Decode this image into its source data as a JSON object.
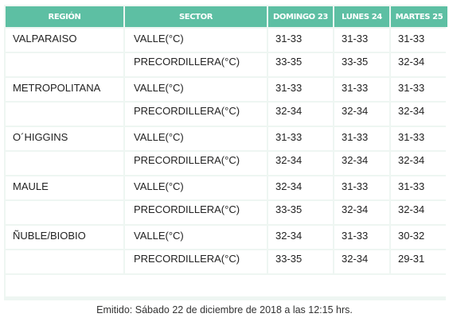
{
  "header": {
    "region": "REGIÓN",
    "sector": "SECTOR",
    "day1": "DOMINGO 23",
    "day2": "LUNES 24",
    "day3": "MARTES 25"
  },
  "regions": [
    {
      "name": "VALPARAISO",
      "rows": [
        {
          "sector": "VALLE(°C)",
          "d1": "31-33",
          "d2": "31-33",
          "d3": "31-33"
        },
        {
          "sector": "PRECORDILLERA(°C)",
          "d1": "33-35",
          "d2": "33-35",
          "d3": "32-34"
        }
      ]
    },
    {
      "name": "METROPOLITANA",
      "rows": [
        {
          "sector": "VALLE(°C)",
          "d1": "31-33",
          "d2": "31-33",
          "d3": "31-33"
        },
        {
          "sector": "PRECORDILLERA(°C)",
          "d1": "32-34",
          "d2": "32-34",
          "d3": "32-34"
        }
      ]
    },
    {
      "name": "O´HIGGINS",
      "rows": [
        {
          "sector": "VALLE(°C)",
          "d1": "31-33",
          "d2": "31-33",
          "d3": "31-33"
        },
        {
          "sector": "PRECORDILLERA(°C)",
          "d1": "32-34",
          "d2": "32-34",
          "d3": "32-34"
        }
      ]
    },
    {
      "name": "MAULE",
      "rows": [
        {
          "sector": "VALLE(°C)",
          "d1": "32-34",
          "d2": "31-33",
          "d3": "31-33"
        },
        {
          "sector": "PRECORDILLERA(°C)",
          "d1": "33-35",
          "d2": "32-34",
          "d3": "32-34"
        }
      ]
    },
    {
      "name": "ÑUBLE/BIOBIO",
      "rows": [
        {
          "sector": "VALLE(°C)",
          "d1": "32-34",
          "d2": "31-33",
          "d3": "30-32"
        },
        {
          "sector": "PRECORDILLERA(°C)",
          "d1": "33-35",
          "d2": "32-34",
          "d3": "29-31"
        }
      ]
    }
  ],
  "footer": {
    "emitted": "Emitido: Sábado 22 de diciembre de 2018 a las 12:15 hrs."
  },
  "colors": {
    "header_bg": "#5dbfa3",
    "header_text": "#ffffff",
    "grid_bg": "#eef6f2"
  }
}
